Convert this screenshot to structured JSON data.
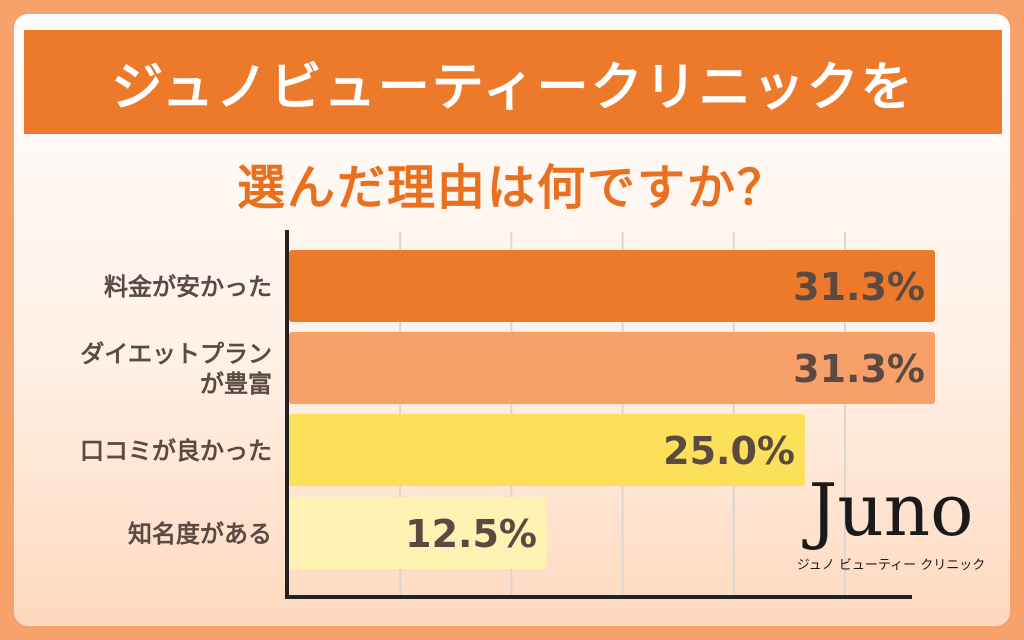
{
  "title_line1": "ジュノビューティークリニックを",
  "title_line2": "選んだ理由は何ですか？",
  "logo": {
    "word": "Juno",
    "sub": "ジュノ ビューティー クリニック"
  },
  "colors": {
    "title_band": "#ec7a2a",
    "subtitle_text": "#e8701f",
    "label_text": "#5a4a42",
    "value_text": "#5a4a42"
  },
  "chart_data": {
    "type": "bar",
    "orientation": "horizontal",
    "title": "ジュノビューティークリニックを選んだ理由は何ですか？",
    "categories": [
      [
        "料金が安かった"
      ],
      [
        "ダイエットプラン",
        "が豊富"
      ],
      [
        "口コミが良かった"
      ],
      [
        "知名度がある"
      ]
    ],
    "values": [
      31.3,
      31.3,
      25.0,
      12.5
    ],
    "value_labels": [
      "31.3%",
      "31.3%",
      "25.0%",
      "12.5%"
    ],
    "bar_colors": [
      "#ec7a2a",
      "#f8a069",
      "#fde05a",
      "#fff2b3"
    ],
    "xlim": [
      0,
      40
    ],
    "grid": true,
    "legend": "none"
  }
}
